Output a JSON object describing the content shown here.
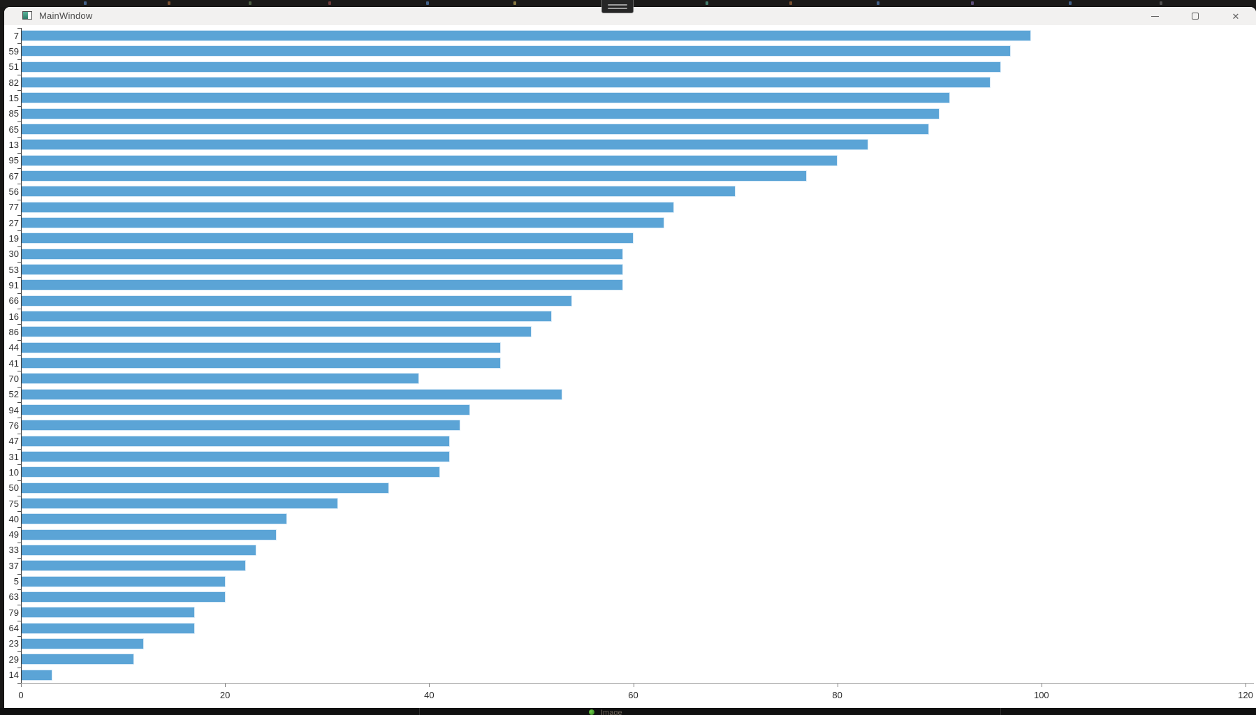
{
  "window": {
    "title": "MainWindow",
    "controls": {
      "minimize_icon": "minimize-icon",
      "maximize_icon": "maximize-icon",
      "close_icon": "close-icon"
    },
    "app_icon": "qt-app-icon"
  },
  "top_edge": {
    "handle_icon": "grab-handle-icon"
  },
  "bottom_edge": {
    "status_icon": "green-status-dot-icon",
    "partial_text": "Image"
  },
  "chart_data": {
    "type": "bar",
    "orientation": "horizontal",
    "title": "",
    "xlabel": "",
    "ylabel": "",
    "categories": [
      "7",
      "59",
      "51",
      "82",
      "15",
      "85",
      "65",
      "13",
      "95",
      "67",
      "56",
      "77",
      "27",
      "19",
      "30",
      "53",
      "91",
      "66",
      "16",
      "86",
      "44",
      "41",
      "70",
      "52",
      "94",
      "76",
      "47",
      "31",
      "10",
      "50",
      "75",
      "40",
      "49",
      "33",
      "37",
      "5",
      "63",
      "79",
      "64",
      "23",
      "29",
      "14"
    ],
    "values": [
      99,
      97,
      96,
      95,
      91,
      90,
      89,
      83,
      80,
      77,
      70,
      64,
      63,
      60,
      59,
      59,
      59,
      54,
      52,
      50,
      47,
      47,
      39,
      53,
      44,
      43,
      42,
      42,
      41,
      36,
      31,
      26,
      25,
      23,
      22,
      20,
      20,
      17,
      17,
      12,
      11,
      3
    ],
    "xlim": [
      0,
      120
    ],
    "x_ticks": [
      0,
      20,
      40,
      60,
      80,
      100,
      120
    ],
    "grid": false,
    "legend": false,
    "bar_color": "#5ba4d6",
    "bar_edge_color": "#d9eaf7",
    "axis_color": "#3c3c3c"
  }
}
